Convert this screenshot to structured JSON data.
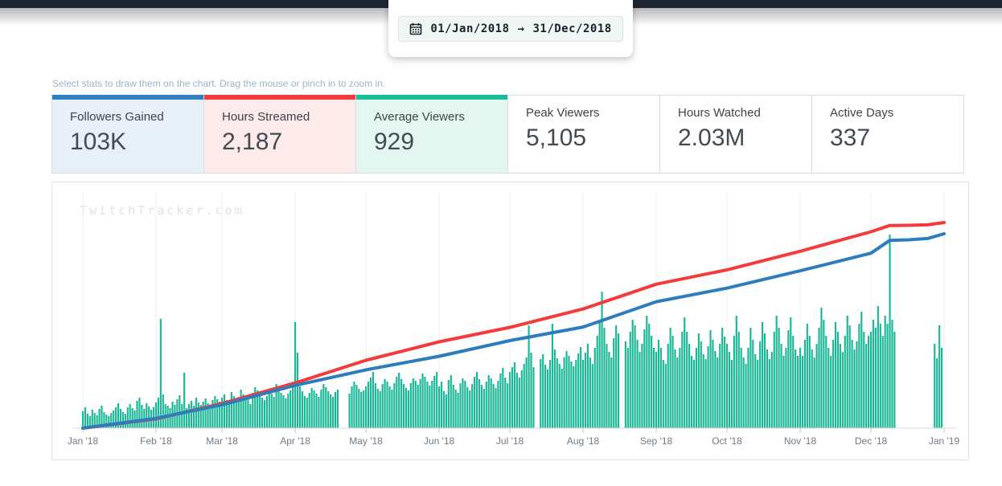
{
  "header": {
    "date_range": {
      "start": "01/Jan/2018",
      "arrow": "→",
      "end": "31/Dec/2018"
    }
  },
  "hint": "Select stats to draw them on the chart. Drag the mouse or pinch in to zoom in.",
  "stats": [
    {
      "label": "Followers Gained",
      "value": "103K",
      "active": true,
      "accent": "#2e80c2",
      "bg": "#e7eff8"
    },
    {
      "label": "Hours Streamed",
      "value": "2,187",
      "active": true,
      "accent": "#f23c3c",
      "bg": "#fdeaea"
    },
    {
      "label": "Average Viewers",
      "value": "929",
      "active": true,
      "accent": "#1bbb99",
      "bg": "#e4f6f0"
    },
    {
      "label": "Peak Viewers",
      "value": "5,105",
      "active": false,
      "accent": "",
      "bg": "#ffffff"
    },
    {
      "label": "Hours Watched",
      "value": "2.03M",
      "active": false,
      "accent": "",
      "bg": "#ffffff"
    },
    {
      "label": "Active Days",
      "value": "337",
      "active": false,
      "accent": "",
      "bg": "#ffffff"
    }
  ],
  "watermark": "TwitchTracker.com",
  "chart_data": {
    "type": "bar+line",
    "title": "Channel stats 01/Jan/2018 - 31/Dec/2018",
    "x_labels": [
      "Jan '18",
      "Feb '18",
      "Mar '18",
      "Apr '18",
      "May '18",
      "Jun '18",
      "Jul '18",
      "Aug '18",
      "Sep '18",
      "Oct '18",
      "Nov '18",
      "Dec '18",
      "Jan '19"
    ],
    "month_start_days": [
      0,
      31,
      59,
      90,
      120,
      151,
      181,
      212,
      243,
      273,
      304,
      334,
      365
    ],
    "grid": "vertical-only",
    "legend": "none",
    "bars": {
      "name": "Average Viewers (daily)",
      "color": "#19b795",
      "ylim": [
        0,
        2950
      ],
      "daily_values_by_month": [
        [
          210,
          260,
          180,
          150,
          230,
          190,
          160,
          240,
          280,
          200,
          170,
          150,
          190,
          220,
          260,
          310,
          240,
          200,
          180,
          260,
          300,
          250,
          220,
          340,
          380,
          290,
          240,
          310,
          270,
          230,
          260
        ],
        [
          320,
          380,
          1360,
          420,
          300,
          280,
          250,
          330,
          290,
          360,
          410,
          300,
          690,
          250,
          300,
          340,
          280,
          380,
          320,
          290,
          330,
          370,
          310,
          280,
          350,
          400,
          360,
          330
        ],
        [
          380,
          420,
          350,
          300,
          450,
          400,
          360,
          330,
          480,
          420,
          390,
          360,
          300,
          440,
          510,
          470,
          420,
          380,
          350,
          400,
          460,
          430,
          390,
          550,
          480,
          440,
          410,
          370,
          430,
          470,
          520
        ],
        [
          1320,
          940,
          520,
          460,
          400,
          380,
          440,
          500,
          470,
          430,
          390,
          480,
          550,
          510,
          460,
          420,
          390,
          450,
          480,
          0,
          0,
          0,
          0,
          430,
          520,
          580,
          540,
          490,
          450,
          470
        ],
        [
          520,
          580,
          630,
          700,
          560,
          490,
          460,
          550,
          610,
          580,
          520,
          480,
          560,
          640,
          690,
          610,
          550,
          500,
          470,
          560,
          620,
          590,
          540,
          610,
          680,
          640,
          580,
          530,
          590,
          650,
          700
        ],
        [
          520,
          580,
          460,
          420,
          600,
          660,
          540,
          480,
          440,
          560,
          620,
          590,
          510,
          470,
          550,
          640,
          700,
          610,
          540,
          490,
          580,
          660,
          620,
          550,
          500,
          590,
          680,
          750,
          630,
          560
        ],
        [
          700,
          760,
          820,
          690,
          630,
          720,
          800,
          880,
          1280,
          940,
          760,
          0,
          0,
          860,
          920,
          790,
          730,
          850,
          1300,
          980,
          870,
          800,
          740,
          880,
          960,
          900,
          830,
          770,
          850,
          930,
          1010
        ],
        [
          850,
          940,
          1050,
          880,
          800,
          1000,
          1150,
          1320,
          1700,
          1250,
          1050,
          950,
          880,
          1120,
          1280,
          1180,
          0,
          0,
          1080,
          1000,
          1200,
          1350,
          1280,
          1100,
          950,
          1050,
          1230,
          1400,
          1300,
          1150,
          1000
        ],
        [
          950,
          1100,
          1000,
          850,
          800,
          1050,
          1250,
          1150,
          980,
          880,
          1000,
          1200,
          1380,
          1200,
          1050,
          900,
          850,
          1000,
          1180,
          1080,
          920,
          860,
          1020,
          1220,
          1100,
          960,
          880,
          1050,
          1250,
          1140
        ],
        [
          1050,
          950,
          850,
          1150,
          1400,
          1200,
          1000,
          880,
          800,
          1000,
          1250,
          1100,
          920,
          850,
          1080,
          1320,
          1180,
          980,
          860,
          950,
          1200,
          1400,
          1250,
          1050,
          900,
          1000,
          1220,
          1380,
          1150,
          980,
          900
        ],
        [
          1000,
          900,
          1100,
          1300,
          1150,
          980,
          880,
          1050,
          1250,
          1500,
          1350,
          1150,
          1000,
          900,
          1100,
          1320,
          1200,
          1050,
          950,
          1150,
          1400,
          1280,
          1100,
          980,
          1080,
          1300,
          1450,
          1200,
          1050,
          1150
        ],
        [
          1200,
          1350,
          1250,
          1520,
          1300,
          1150,
          1400,
          1300,
          2410,
          1350,
          1200,
          0,
          0,
          0,
          0,
          0,
          0,
          0,
          0,
          0,
          0,
          0,
          0,
          0,
          0,
          0,
          0,
          1050,
          870,
          1280,
          1000
        ]
      ]
    },
    "lines": [
      {
        "name": "Hours Streamed (cumulative)",
        "color": "#f23c3c",
        "total": 2187,
        "days": [
          0,
          31,
          59,
          90,
          120,
          151,
          181,
          212,
          243,
          273,
          304,
          334,
          342,
          350,
          358,
          365
        ],
        "values": [
          0,
          98,
          262,
          481,
          722,
          918,
          1072,
          1268,
          1531,
          1684,
          1881,
          2089,
          2155,
          2157,
          2162,
          2187
        ]
      },
      {
        "name": "Followers Gained (cumulative)",
        "color": "#2d7cbe",
        "total": 103000,
        "days": [
          0,
          31,
          59,
          90,
          120,
          151,
          181,
          212,
          243,
          273,
          304,
          334,
          342,
          350,
          358,
          365
        ],
        "values": [
          0,
          5200,
          12400,
          22700,
          30900,
          38100,
          46400,
          53600,
          67000,
          74200,
          83400,
          92700,
          99500,
          99800,
          100500,
          103000
        ]
      }
    ]
  }
}
